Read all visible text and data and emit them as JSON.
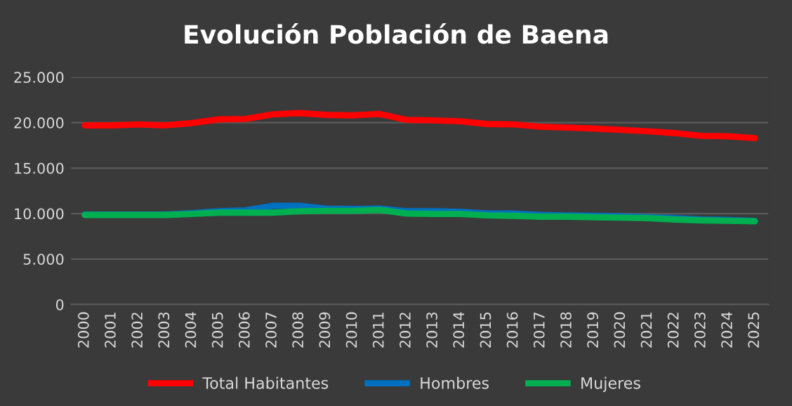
{
  "chart_data": {
    "type": "line",
    "title": "Evolución Población de Baena",
    "categories": [
      "2000",
      "2001",
      "2002",
      "2003",
      "2004",
      "2005",
      "2006",
      "2007",
      "2008",
      "2009",
      "2010",
      "2011",
      "2012",
      "2013",
      "2014",
      "2015",
      "2016",
      "2017",
      "2018",
      "2019",
      "2020",
      "2021",
      "2022",
      "2023",
      "2024",
      "2025"
    ],
    "series": [
      {
        "name": "Total Habitantes",
        "color": "#ff0000",
        "values": [
          19700,
          19700,
          19800,
          19700,
          19950,
          20350,
          20400,
          20900,
          21050,
          20850,
          20800,
          20950,
          20300,
          20250,
          20150,
          19850,
          19800,
          19550,
          19450,
          19350,
          19200,
          19050,
          18850,
          18550,
          18500,
          18300
        ]
      },
      {
        "name": "Hombres",
        "color": "#0070c0",
        "values": [
          9900,
          9900,
          9900,
          9900,
          10050,
          10250,
          10350,
          10850,
          10850,
          10550,
          10500,
          10550,
          10250,
          10250,
          10200,
          10000,
          10000,
          9850,
          9800,
          9750,
          9700,
          9600,
          9500,
          9350,
          9300,
          9200
        ]
      },
      {
        "name": "Mujeres",
        "color": "#00b050",
        "values": [
          9850,
          9850,
          9850,
          9850,
          9950,
          10100,
          10100,
          10100,
          10250,
          10300,
          10300,
          10400,
          10000,
          9950,
          9950,
          9800,
          9750,
          9650,
          9650,
          9600,
          9550,
          9500,
          9350,
          9250,
          9200,
          9150
        ]
      }
    ],
    "ylim": [
      0,
      25000
    ],
    "yticks": [
      {
        "value": 0,
        "label": "0"
      },
      {
        "value": 5000,
        "label": "5.000"
      },
      {
        "value": 10000,
        "label": "10.000"
      },
      {
        "value": 15000,
        "label": "15.000"
      },
      {
        "value": 20000,
        "label": "20.000"
      },
      {
        "value": 25000,
        "label": "25.000"
      }
    ],
    "grid": "y",
    "legend": "bottom",
    "marker": "none",
    "line_style": "solid"
  }
}
